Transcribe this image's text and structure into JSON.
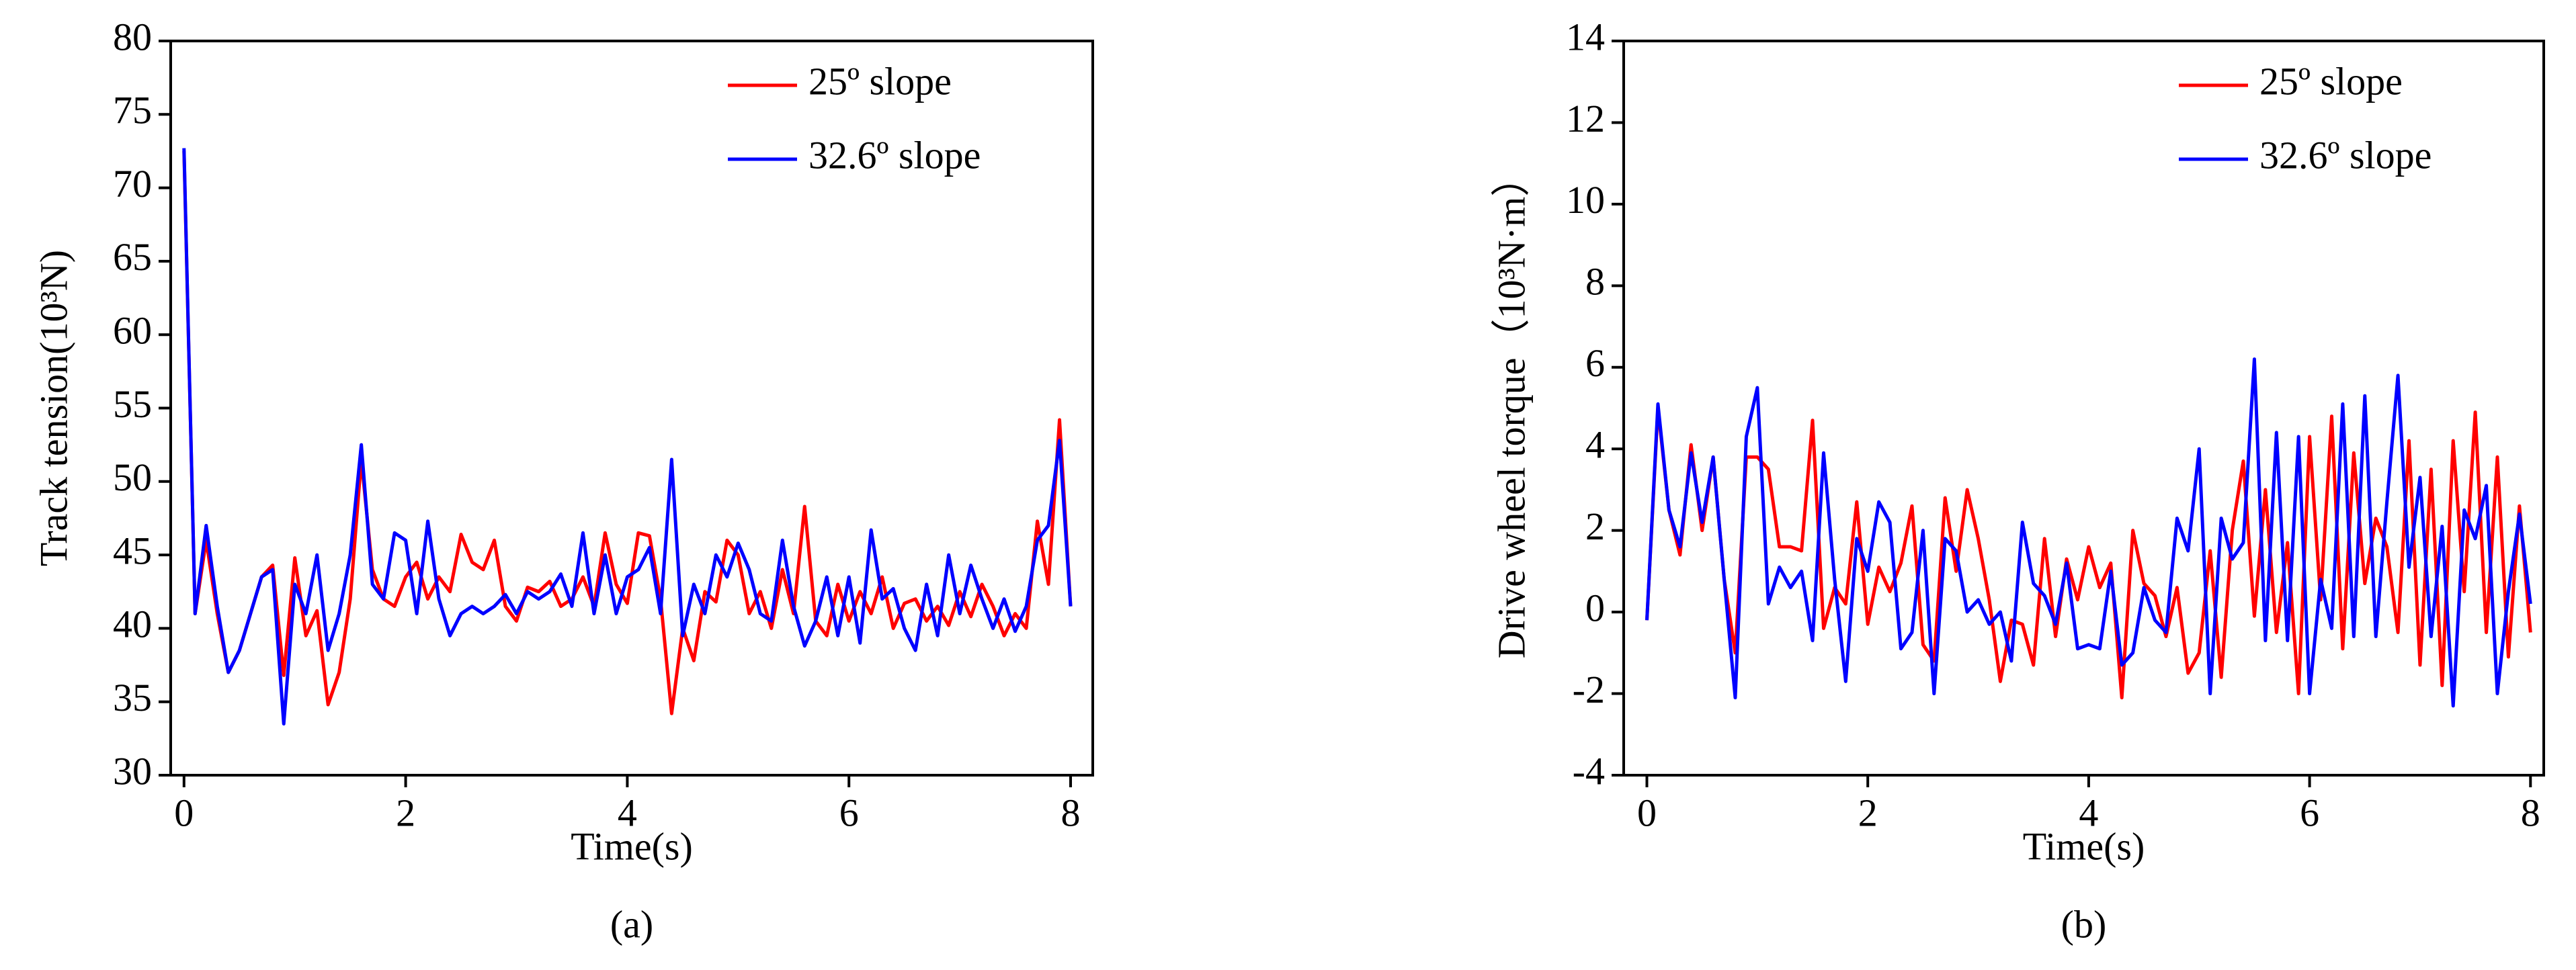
{
  "chart_data": [
    {
      "type": "line",
      "title": "(a)",
      "xlabel": "Time(s)",
      "ylabel": "Track tension(10³N)",
      "xlim": [
        -0.12,
        8.2
      ],
      "ylim": [
        30,
        80
      ],
      "xticks": [
        0,
        2,
        4,
        6,
        8
      ],
      "yticks": [
        30,
        35,
        40,
        45,
        50,
        55,
        60,
        65,
        70,
        75,
        80
      ],
      "legend": "upper right",
      "x": [
        0,
        0.1,
        0.2,
        0.3,
        0.4,
        0.5,
        0.6,
        0.7,
        0.8,
        0.9,
        1,
        1.1,
        1.2,
        1.3,
        1.4,
        1.5,
        1.6,
        1.7,
        1.8,
        1.9,
        2,
        2.1,
        2.2,
        2.3,
        2.4,
        2.5,
        2.6,
        2.7,
        2.8,
        2.9,
        3,
        3.1,
        3.2,
        3.3,
        3.4,
        3.5,
        3.6,
        3.7,
        3.8,
        3.9,
        4,
        4.1,
        4.2,
        4.3,
        4.4,
        4.5,
        4.6,
        4.7,
        4.8,
        4.9,
        5,
        5.1,
        5.2,
        5.3,
        5.4,
        5.5,
        5.6,
        5.7,
        5.8,
        5.9,
        6,
        6.1,
        6.2,
        6.3,
        6.4,
        6.5,
        6.6,
        6.7,
        6.8,
        6.9,
        7,
        7.1,
        7.2,
        7.3,
        7.4,
        7.5,
        7.6,
        7.7,
        7.8,
        7.9,
        8
      ],
      "series": [
        {
          "name": "25º slope",
          "color": "#ff0000",
          "values": [
            72.5,
            41,
            46,
            41,
            37,
            38.5,
            41,
            43.5,
            44.3,
            36.8,
            44.8,
            39.5,
            41.2,
            34.8,
            37,
            42,
            51.5,
            44,
            42,
            41.5,
            43.5,
            44.5,
            42,
            43.5,
            42.5,
            46.4,
            44.5,
            44,
            46,
            41.5,
            40.5,
            42.8,
            42.5,
            43.2,
            41.5,
            42,
            43.5,
            41.5,
            46.5,
            43,
            41.7,
            46.5,
            46.3,
            42,
            34.2,
            40,
            37.8,
            42.5,
            41.8,
            46,
            45,
            41,
            42.5,
            40,
            44,
            41,
            48.3,
            40.5,
            39.5,
            43,
            40.5,
            42.5,
            41,
            43.5,
            40,
            41.7,
            42,
            40.5,
            41.5,
            40.2,
            42.5,
            40.8,
            43,
            41.5,
            39.5,
            41,
            40,
            47.3,
            43,
            54.2,
            41.5
          ]
        },
        {
          "name": "32.6º slope",
          "color": "#0000ff",
          "values": [
            72.7,
            41,
            47,
            41.5,
            37,
            38.5,
            41,
            43.5,
            44,
            33.5,
            43,
            41,
            45,
            38.5,
            41,
            45,
            52.5,
            43,
            42,
            46.5,
            46,
            41,
            47.3,
            42,
            39.5,
            41,
            41.5,
            41,
            41.5,
            42.3,
            41,
            42.5,
            42,
            42.5,
            43.7,
            41.5,
            46.5,
            41,
            45,
            41,
            43.5,
            44,
            45.5,
            41,
            51.5,
            39.5,
            43,
            41,
            45,
            43.5,
            45.8,
            44,
            41,
            40.5,
            46,
            41.5,
            38.8,
            40.5,
            43.5,
            39.5,
            43.5,
            39,
            46.7,
            42,
            42.7,
            40,
            38.5,
            43,
            39.5,
            45,
            41,
            44.3,
            42,
            40,
            42,
            39.8,
            41.5,
            46,
            47,
            52.8,
            41.5
          ]
        }
      ]
    },
    {
      "type": "line",
      "title": "(b)",
      "xlabel": "Time(s)",
      "ylabel": "Drive wheel torque（10³N·m）",
      "xlim": [
        -0.21,
        8.12
      ],
      "ylim": [
        -4,
        14
      ],
      "xticks": [
        0,
        2,
        4,
        6,
        8
      ],
      "yticks": [
        -4,
        -2,
        0,
        2,
        4,
        6,
        8,
        10,
        12,
        14
      ],
      "legend": "upper right",
      "x": [
        0,
        0.1,
        0.2,
        0.3,
        0.4,
        0.5,
        0.6,
        0.7,
        0.8,
        0.9,
        1,
        1.1,
        1.2,
        1.3,
        1.4,
        1.5,
        1.6,
        1.7,
        1.8,
        1.9,
        2,
        2.1,
        2.2,
        2.3,
        2.4,
        2.5,
        2.6,
        2.7,
        2.8,
        2.9,
        3,
        3.1,
        3.2,
        3.3,
        3.4,
        3.5,
        3.6,
        3.7,
        3.8,
        3.9,
        4,
        4.1,
        4.2,
        4.3,
        4.4,
        4.5,
        4.6,
        4.7,
        4.8,
        4.9,
        5,
        5.1,
        5.2,
        5.3,
        5.4,
        5.5,
        5.6,
        5.7,
        5.8,
        5.9,
        6,
        6.1,
        6.2,
        6.3,
        6.4,
        6.5,
        6.6,
        6.7,
        6.8,
        6.9,
        7,
        7.1,
        7.2,
        7.3,
        7.4,
        7.5,
        7.6,
        7.7,
        7.8,
        7.9,
        8
      ],
      "series": [
        {
          "name": "25º slope",
          "color": "#ff0000",
          "values": [
            -0.2,
            5,
            2.5,
            1.4,
            4.1,
            2,
            3.8,
            0.8,
            -1,
            3.8,
            3.8,
            3.5,
            1.6,
            1.6,
            1.5,
            4.7,
            -0.4,
            0.6,
            0.2,
            2.7,
            -0.3,
            1.1,
            0.5,
            1.2,
            2.6,
            -0.8,
            -1.2,
            2.8,
            1,
            3,
            1.8,
            0.3,
            -1.7,
            -0.2,
            -0.3,
            -1.3,
            1.8,
            -0.6,
            1.3,
            0.3,
            1.6,
            0.6,
            1.2,
            -2.1,
            2,
            0.7,
            0.4,
            -0.6,
            0.6,
            -1.5,
            -1,
            1.5,
            -1.6,
            2,
            3.7,
            -0.1,
            3,
            -0.5,
            1.7,
            -2,
            4.3,
            0.3,
            4.8,
            -0.9,
            3.9,
            0.7,
            2.3,
            1.6,
            -0.5,
            4.2,
            -1.3,
            3.5,
            -1.8,
            4.2,
            0.5,
            4.9,
            -0.5,
            3.8,
            -1.1,
            2.6,
            -0.5
          ]
        },
        {
          "name": "32.6º slope",
          "color": "#0000ff",
          "values": [
            -0.2,
            5.1,
            2.5,
            1.6,
            3.9,
            2.2,
            3.8,
            0.8,
            -2.1,
            4.3,
            5.5,
            0.2,
            1.1,
            0.6,
            1,
            -0.7,
            3.9,
            0.8,
            -1.7,
            1.8,
            1,
            2.7,
            2.2,
            -0.9,
            -0.5,
            2,
            -2,
            1.8,
            1.5,
            0,
            0.3,
            -0.3,
            0,
            -1.2,
            2.2,
            0.7,
            0.4,
            -0.3,
            1.2,
            -0.9,
            -0.8,
            -0.9,
            1,
            -1.3,
            -1,
            0.6,
            -0.2,
            -0.5,
            2.3,
            1.5,
            4,
            -2,
            2.3,
            1.3,
            1.7,
            6.2,
            -0.7,
            4.4,
            -0.7,
            4.3,
            -2,
            0.8,
            -0.4,
            5.1,
            -0.6,
            5.3,
            -0.6,
            2.7,
            5.8,
            1.1,
            3.3,
            -0.6,
            2.1,
            -2.3,
            2.5,
            1.8,
            3.1,
            -2,
            0.5,
            2.4,
            0.2
          ]
        }
      ]
    }
  ]
}
